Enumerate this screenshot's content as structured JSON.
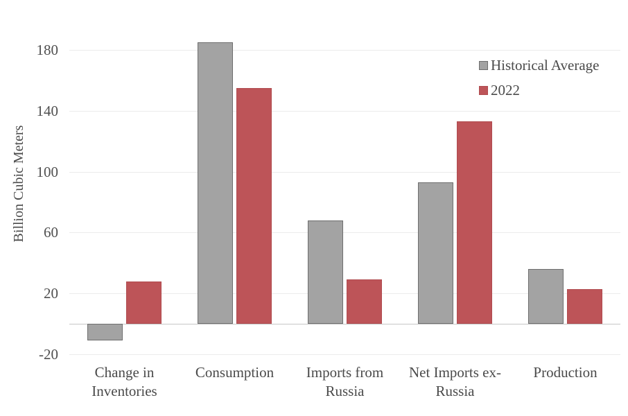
{
  "chart_data": {
    "type": "bar",
    "title": "",
    "xlabel": "",
    "ylabel": "Billion Cubic Meters",
    "categories": [
      "Change in Inventories",
      "Consumption",
      "Imports from Russia",
      "Net Imports ex-Russia",
      "Production"
    ],
    "category_display": [
      [
        "Change in",
        "Inventories"
      ],
      [
        "Consumption"
      ],
      [
        "Imports from",
        "Russia"
      ],
      [
        "Net Imports ex-",
        "Russia"
      ],
      [
        "Production"
      ]
    ],
    "series": [
      {
        "name": "Historical Average",
        "color": "#a3a3a3",
        "border_color": "#6e6e6e",
        "values": [
          -11,
          185,
          68,
          93,
          36
        ]
      },
      {
        "name": "2022",
        "color": "#bd5458",
        "border_color": "#b04b4f",
        "values": [
          28,
          155,
          29,
          133,
          23
        ]
      }
    ],
    "ylim": [
      -20,
      200
    ],
    "yticks": [
      180,
      140,
      100,
      60,
      20,
      -20
    ],
    "grid": true,
    "legend_position": "top-right",
    "background_color": "#ffffff",
    "text_color": "#4a4a4a"
  }
}
